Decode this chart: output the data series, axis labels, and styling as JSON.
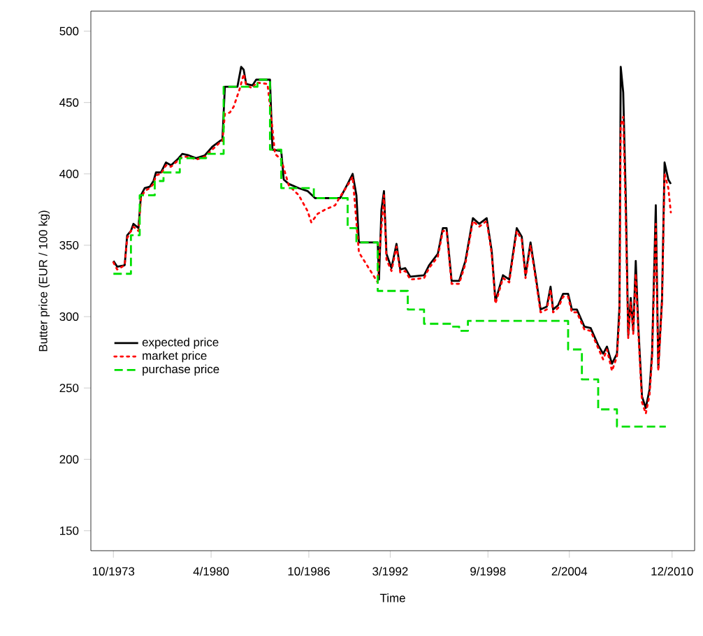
{
  "chart_data": {
    "type": "line",
    "xlabel": "Time",
    "ylabel": "Butter price (EUR / 100 kg)",
    "xlim": [
      "1972-04",
      "2012-06"
    ],
    "ylim": [
      136,
      514
    ],
    "xticks": [
      {
        "value": "1973-10",
        "label": "10/1973"
      },
      {
        "value": "1980-04",
        "label": "4/1980"
      },
      {
        "value": "1986-10",
        "label": "10/1986"
      },
      {
        "value": "1992-03",
        "label": "3/1992"
      },
      {
        "value": "1998-09",
        "label": "9/1998"
      },
      {
        "value": "2004-02",
        "label": "2/2004"
      },
      {
        "value": "2010-12",
        "label": "12/2010"
      }
    ],
    "yticks": [
      150,
      200,
      250,
      300,
      350,
      400,
      450,
      500
    ],
    "grid": false,
    "legend": "left",
    "series": [
      {
        "name": "expected price",
        "line_style": "solid",
        "color": "#000000",
        "x": [
          "1973-10",
          "1974-01",
          "1974-07",
          "1974-09",
          "1974-12",
          "1975-02",
          "1975-06",
          "1975-08",
          "1975-11",
          "1976-03",
          "1976-06",
          "1976-08",
          "1976-12",
          "1977-04",
          "1977-08",
          "1978-01",
          "1978-05",
          "1978-10",
          "1979-04",
          "1979-11",
          "1980-05",
          "1980-11",
          "1981-01",
          "1981-03",
          "1982-01",
          "1982-04",
          "1982-06",
          "1982-08",
          "1983-01",
          "1983-04",
          "1984-03",
          "1984-05",
          "1984-12",
          "1985-02",
          "1985-06",
          "1986-02",
          "1986-09",
          "1987-03",
          "1988-11",
          "1989-05",
          "1989-09",
          "1989-12",
          "1990-02",
          "1991-05",
          "1991-06",
          "1991-08",
          "1991-10",
          "1991-12",
          "1992-04",
          "1992-08",
          "1992-11",
          "1993-03",
          "1993-07",
          "1994-06",
          "1994-10",
          "1995-05",
          "1995-09",
          "1995-12",
          "1996-04",
          "1996-10",
          "1997-03",
          "1997-09",
          "1998-02",
          "1998-08",
          "1998-12",
          "1999-03",
          "1999-09",
          "2000-02",
          "2000-08",
          "2000-12",
          "2001-03",
          "2001-07",
          "2001-11",
          "2002-03",
          "2002-08",
          "2002-11",
          "2003-01",
          "2003-05",
          "2003-09",
          "2004-01",
          "2004-04",
          "2004-08",
          "2005-02",
          "2005-07",
          "2006-01",
          "2006-05",
          "2006-08",
          "2006-12",
          "2007-04",
          "2007-06",
          "2007-07",
          "2007-09",
          "2007-11",
          "2008-01",
          "2008-03",
          "2008-05",
          "2008-07",
          "2008-09",
          "2008-12",
          "2009-03",
          "2009-06",
          "2009-08",
          "2009-11",
          "2010-01",
          "2010-04",
          "2010-06",
          "2010-09",
          "2010-11"
        ],
        "values": [
          339,
          335,
          336,
          357,
          360,
          365,
          362,
          385,
          390,
          391,
          395,
          401,
          401,
          408,
          406,
          410,
          414,
          413,
          411,
          413,
          419,
          423,
          424,
          461,
          461,
          475,
          473,
          463,
          462,
          466,
          466,
          417,
          416,
          396,
          393,
          390,
          388,
          383,
          383,
          393,
          400,
          385,
          352,
          352,
          326,
          375,
          388,
          344,
          334,
          351,
          333,
          334,
          328,
          329,
          336,
          344,
          362,
          362,
          325,
          325,
          339,
          369,
          365,
          369,
          346,
          311,
          329,
          326,
          362,
          356,
          329,
          352,
          329,
          305,
          307,
          321,
          305,
          308,
          316,
          316,
          305,
          305,
          293,
          292,
          280,
          274,
          279,
          267,
          274,
          307,
          475,
          457,
          385,
          287,
          313,
          290,
          339,
          294,
          244,
          236,
          249,
          274,
          378,
          264,
          313,
          408,
          396,
          393
        ]
      },
      {
        "name": "market price",
        "line_style": "dotted",
        "color": "#ff0000",
        "x": [
          "1973-10",
          "1974-01",
          "1974-07",
          "1974-09",
          "1974-12",
          "1975-02",
          "1975-06",
          "1975-08",
          "1975-11",
          "1976-03",
          "1976-06",
          "1976-08",
          "1976-12",
          "1977-04",
          "1977-08",
          "1978-01",
          "1978-05",
          "1978-10",
          "1979-04",
          "1979-11",
          "1980-05",
          "1980-11",
          "1981-01",
          "1981-03",
          "1981-07",
          "1981-10",
          "1982-03",
          "1982-06",
          "1982-08",
          "1983-01",
          "1983-04",
          "1984-01",
          "1984-04",
          "1984-07",
          "1984-12",
          "1985-06",
          "1986-02",
          "1986-09",
          "1986-12",
          "1987-05",
          "1987-11",
          "1988-07",
          "1988-11",
          "1989-05",
          "1989-09",
          "1990-02",
          "1990-07",
          "1991-05",
          "1991-06",
          "1991-10",
          "1991-12",
          "1992-04",
          "1992-08",
          "1992-11",
          "1993-03",
          "1993-07",
          "1994-06",
          "1994-10",
          "1995-05",
          "1995-09",
          "1995-12",
          "1996-04",
          "1996-10",
          "1997-03",
          "1997-09",
          "1998-02",
          "1998-08",
          "1998-12",
          "1999-03",
          "1999-09",
          "2000-02",
          "2000-08",
          "2000-12",
          "2001-03",
          "2001-07",
          "2001-11",
          "2002-03",
          "2002-08",
          "2002-11",
          "2003-01",
          "2003-05",
          "2003-09",
          "2004-01",
          "2004-04",
          "2004-08",
          "2005-02",
          "2005-07",
          "2006-01",
          "2006-05",
          "2006-08",
          "2006-12",
          "2007-04",
          "2007-06",
          "2007-07",
          "2007-09",
          "2007-11",
          "2008-01",
          "2008-03",
          "2008-05",
          "2008-07",
          "2008-09",
          "2008-12",
          "2009-03",
          "2009-06",
          "2009-08",
          "2009-11",
          "2010-01",
          "2010-04",
          "2010-06",
          "2010-09",
          "2010-11"
        ],
        "values": [
          338,
          333,
          336,
          355,
          360,
          363,
          360,
          383,
          388,
          390,
          393,
          399,
          400,
          406,
          405,
          409,
          412,
          412,
          410,
          412,
          417,
          422,
          423,
          442,
          443,
          447,
          460,
          470,
          462,
          460,
          464,
          463,
          440,
          414,
          410,
          392,
          385,
          374,
          366,
          372,
          375,
          378,
          384,
          392,
          398,
          345,
          338,
          324,
          340,
          385,
          340,
          332,
          349,
          331,
          332,
          326,
          327,
          334,
          342,
          360,
          360,
          323,
          323,
          337,
          367,
          363,
          367,
          344,
          309,
          327,
          324,
          360,
          354,
          327,
          350,
          327,
          303,
          305,
          319,
          303,
          306,
          314,
          314,
          303,
          303,
          291,
          290,
          278,
          270,
          277,
          262,
          272,
          300,
          434,
          440,
          370,
          285,
          310,
          288,
          330,
          290,
          240,
          232,
          245,
          270,
          365,
          262,
          310,
          400,
          390,
          373
        ]
      },
      {
        "name": "purchase price",
        "type": "step",
        "line_style": "dashed",
        "color": "#00e000",
        "x": [
          "1973-10",
          "1974-12",
          "1975-07",
          "1976-07",
          "1977-02",
          "1978-03",
          "1979-12",
          "1981-02",
          "1983-05",
          "1984-03",
          "1984-12",
          "1987-02",
          "1989-05",
          "1989-12",
          "1991-05",
          "1993-05",
          "1994-06",
          "1996-04",
          "1996-10",
          "1997-05",
          "1998-06",
          "2004-01",
          "2004-12",
          "2006-01",
          "2007-04",
          "2010-07"
        ],
        "values": [
          330,
          357,
          385,
          395,
          401,
          411,
          414,
          461,
          466,
          417,
          390,
          383,
          362,
          352,
          318,
          305,
          295,
          293,
          290,
          297,
          297,
          277,
          256,
          235,
          223,
          223
        ]
      }
    ]
  }
}
